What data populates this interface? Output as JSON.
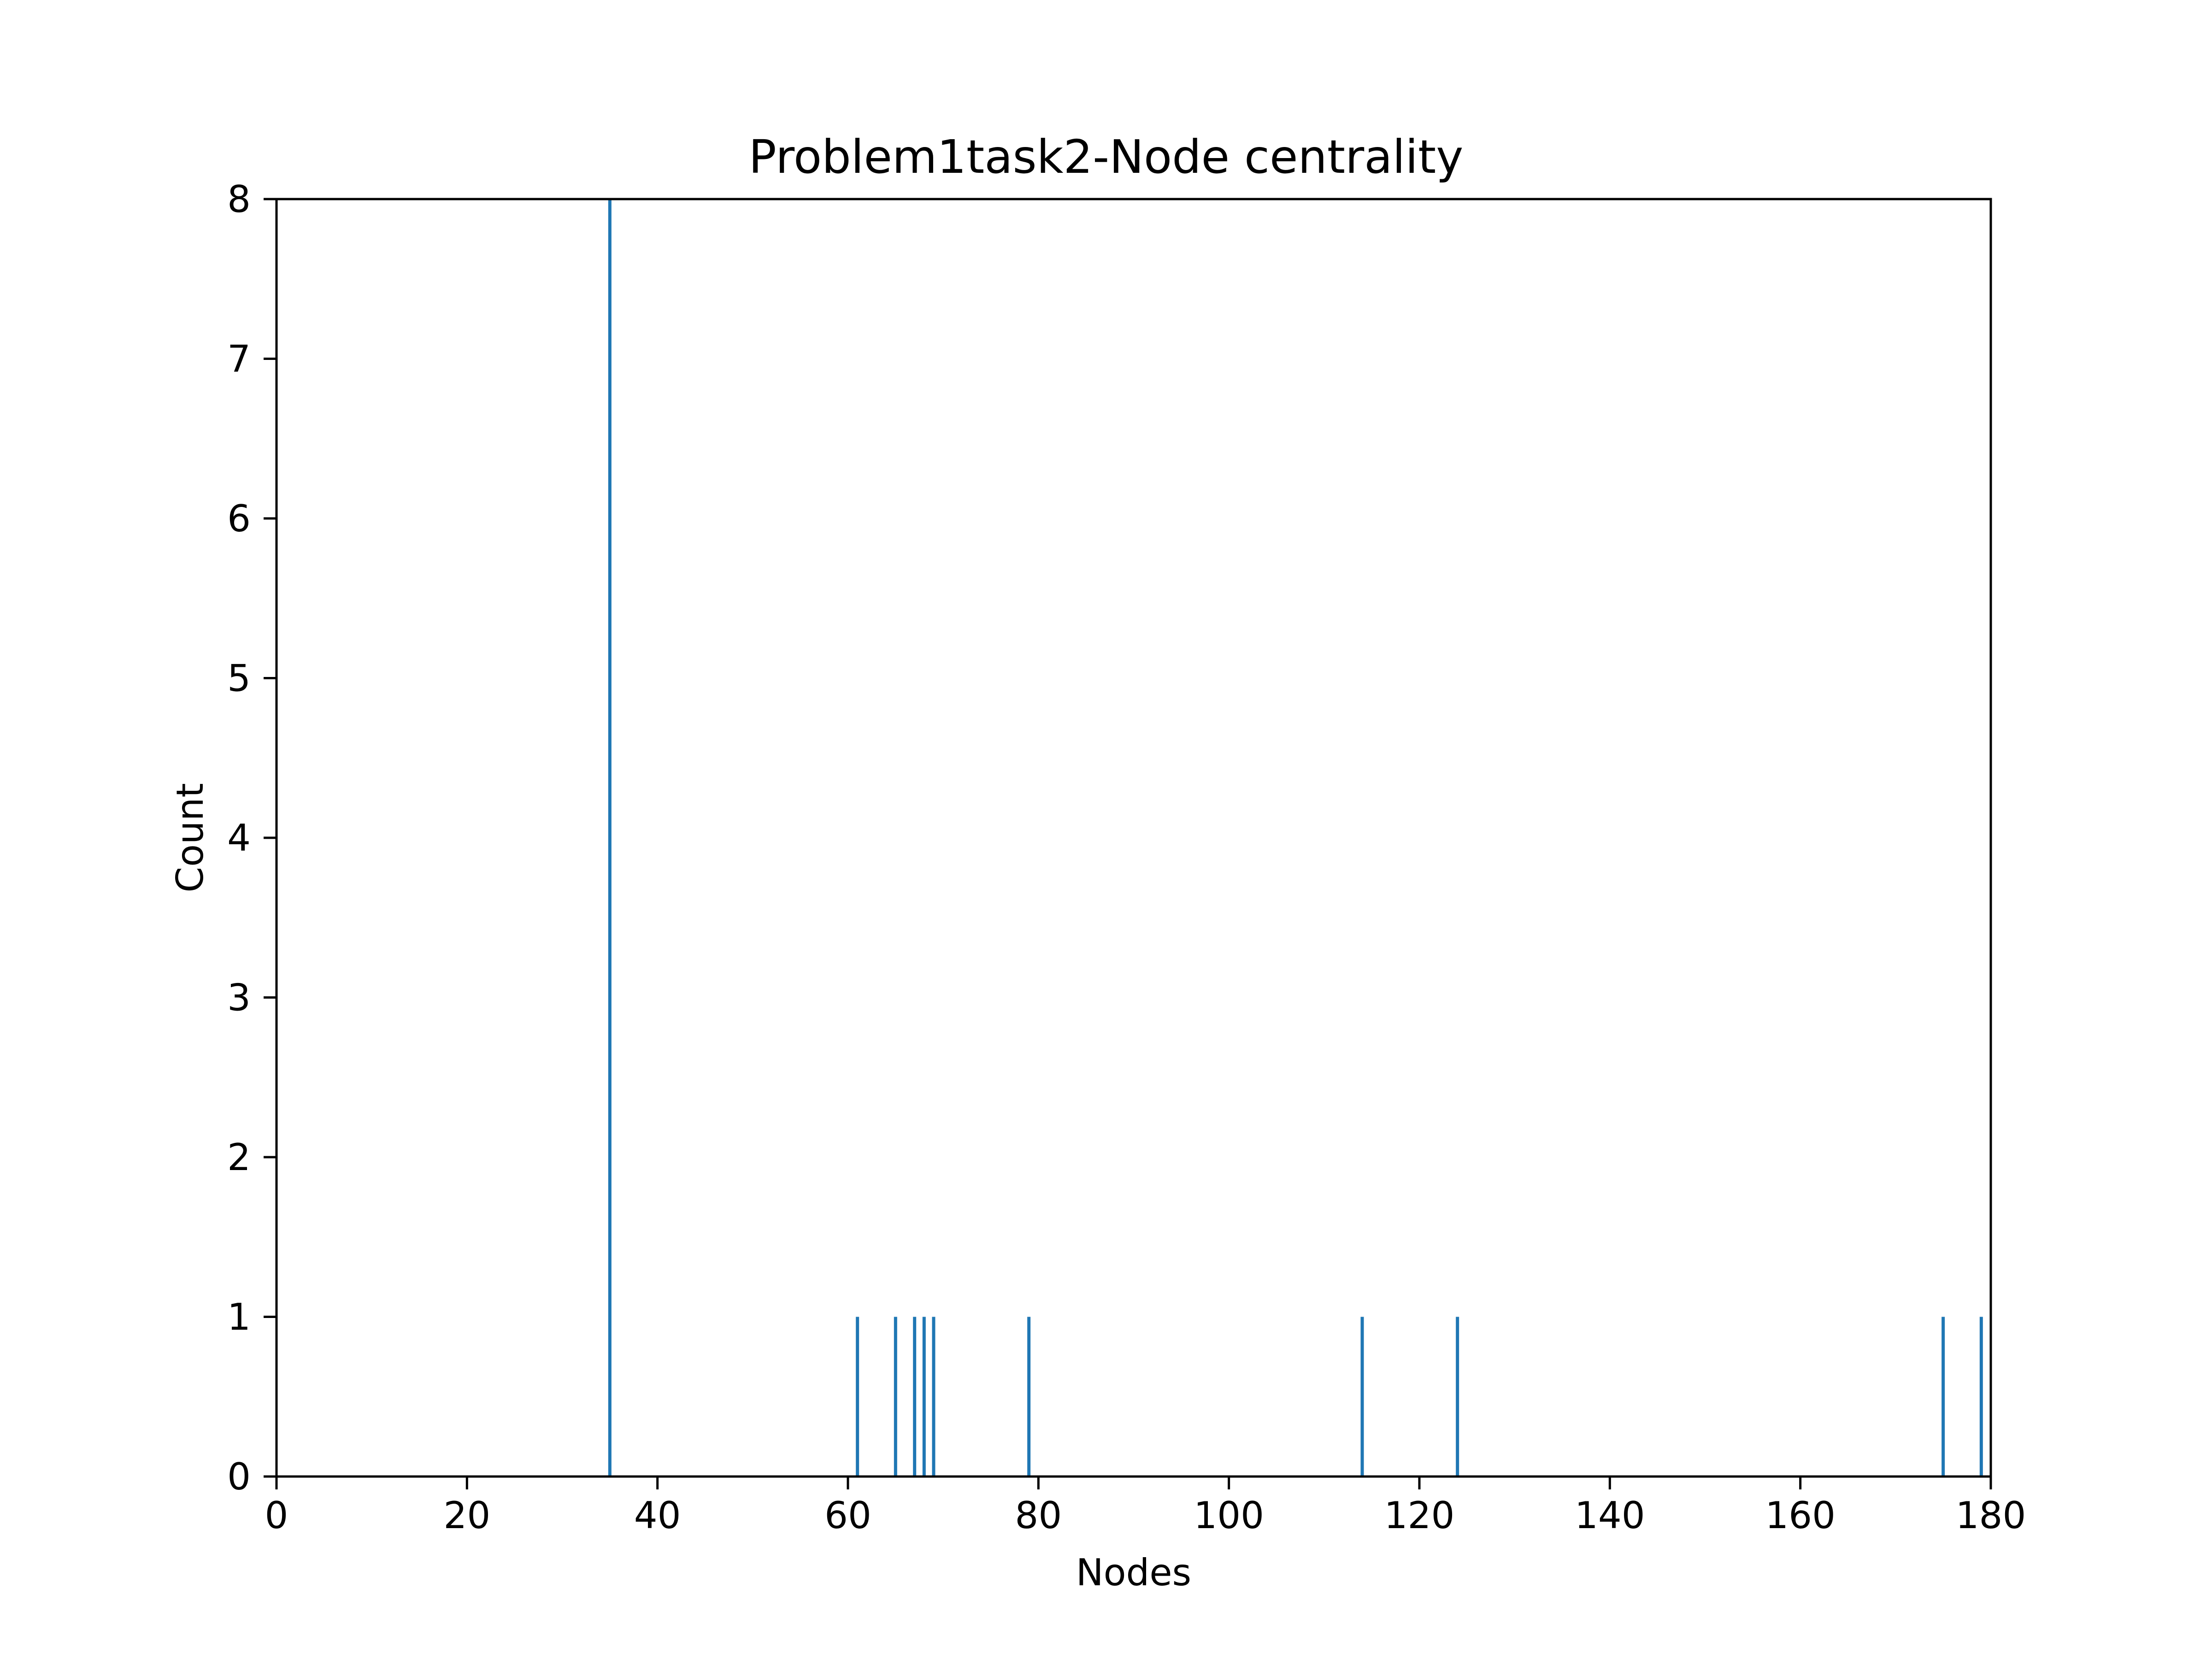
{
  "chart_data": {
    "type": "bar",
    "title": "Problem1task2-Node centrality",
    "xlabel": "Nodes",
    "ylabel": "Count",
    "xlim": [
      0,
      180
    ],
    "ylim": [
      0,
      8
    ],
    "x_ticks": [
      0,
      20,
      40,
      60,
      80,
      100,
      120,
      140,
      160,
      180
    ],
    "y_ticks": [
      0,
      1,
      2,
      3,
      4,
      5,
      6,
      7,
      8
    ],
    "grid": false,
    "legend": "none",
    "bar_color": "#1f77b4",
    "points": [
      {
        "x": 35,
        "y": 8
      },
      {
        "x": 61,
        "y": 1
      },
      {
        "x": 65,
        "y": 1
      },
      {
        "x": 67,
        "y": 1
      },
      {
        "x": 68,
        "y": 1
      },
      {
        "x": 69,
        "y": 1
      },
      {
        "x": 79,
        "y": 1
      },
      {
        "x": 114,
        "y": 1
      },
      {
        "x": 124,
        "y": 1
      },
      {
        "x": 175,
        "y": 1
      },
      {
        "x": 179,
        "y": 1
      }
    ]
  }
}
